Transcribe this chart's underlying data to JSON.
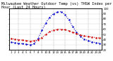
{
  "title": "Milwaukee Weather Outdoor Temp (vs) THSW Index per Hour (Last 24 Hours)",
  "background_color": "#ffffff",
  "plot_bg_color": "#ffffff",
  "grid_color": "#888888",
  "hours": [
    0,
    1,
    2,
    3,
    4,
    5,
    6,
    7,
    8,
    9,
    10,
    11,
    12,
    13,
    14,
    15,
    16,
    17,
    18,
    19,
    20,
    21,
    22,
    23
  ],
  "temp_outdoor": [
    42,
    41,
    40,
    39,
    38,
    37,
    38,
    40,
    44,
    50,
    55,
    58,
    60,
    60,
    59,
    57,
    54,
    52,
    49,
    47,
    46,
    45,
    44,
    43
  ],
  "thsw_index": [
    35,
    34,
    33,
    32,
    31,
    30,
    32,
    42,
    58,
    72,
    83,
    90,
    93,
    94,
    88,
    78,
    65,
    54,
    46,
    41,
    38,
    36,
    34,
    33
  ],
  "temp_color": "#cc0000",
  "thsw_color": "#0000cc",
  "linewidth": 0.8,
  "markersize": 1.5,
  "ylim": [
    20,
    100
  ],
  "yticks": [
    20,
    30,
    40,
    50,
    60,
    70,
    80,
    90,
    100
  ],
  "ytick_labels_right": [
    "20",
    "30",
    "40",
    "50",
    "60",
    "70",
    "80",
    "90",
    "100"
  ],
  "vgrid_positions": [
    2,
    5,
    8,
    11,
    14,
    17,
    20,
    23
  ],
  "title_fontsize": 3.8,
  "tick_fontsize": 2.8,
  "fig_width": 1.6,
  "fig_height": 0.87,
  "dpi": 100
}
